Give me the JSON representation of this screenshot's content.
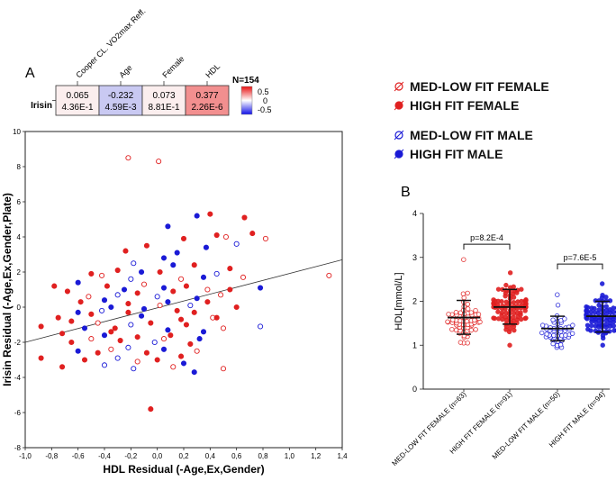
{
  "panel_a": {
    "label": "A",
    "heatmap": {
      "row_label": "Irisin",
      "columns": [
        {
          "name": "Cooper CL. VO2max Reff.",
          "r": "0.065",
          "p": "4.36E-1",
          "color": "#fbeeee"
        },
        {
          "name": "Age",
          "r": "-0.232",
          "p": "4.59E-3",
          "color": "#c9c9f2"
        },
        {
          "name": "Female",
          "r": "0.073",
          "p": "8.81E-1",
          "color": "#fbeeee"
        },
        {
          "name": "HDL",
          "r": "0.377",
          "p": "2.26E-6",
          "color": "#f28f8f"
        }
      ],
      "n_label": "N=154",
      "scale_ticks": [
        "0.5",
        "0",
        "-0.5"
      ]
    }
  },
  "legend": {
    "items": [
      {
        "label": "MED-LOW FIT FEMALE",
        "color": "#e02020",
        "filled": false
      },
      {
        "label": "HIGH FIT FEMALE",
        "color": "#e02020",
        "filled": true
      },
      {
        "label": "MED-LOW FIT MALE",
        "color": "#1a1ad6",
        "filled": false
      },
      {
        "label": "HIGH FIT MALE",
        "color": "#1a1ad6",
        "filled": true
      }
    ]
  },
  "colors": {
    "red": "#e02020",
    "blue": "#1a1ad6",
    "black": "#222222"
  },
  "chart_data": [
    {
      "type": "scatter",
      "title": "",
      "xlabel": "HDL Residual (-Age,Ex,Gender)",
      "ylabel": "Irisin Residual (-Age,Ex,Gender,Plate)",
      "xlim": [
        -1.0,
        1.4
      ],
      "ylim": [
        -8,
        10
      ],
      "x_ticks": [
        "-1,0",
        "-0,8",
        "-0,6",
        "-0,4",
        "-0,2",
        "0,0",
        "0,2",
        "0,4",
        "0,6",
        "0,8",
        "1,0",
        "1,2",
        "1,4"
      ],
      "y_ticks": [
        "10",
        "8",
        "6",
        "4",
        "2",
        "0",
        "-2",
        "-4",
        "-6",
        "-8"
      ],
      "regression": {
        "x1": -1.0,
        "y1": -2.0,
        "x2": 1.4,
        "y2": 2.7
      },
      "points": [
        {
          "x": -0.22,
          "y": 8.5,
          "g": "ff"
        },
        {
          "x": 0.01,
          "y": 8.3,
          "g": "ff"
        },
        {
          "x": 0.4,
          "y": 5.3,
          "g": "hf"
        },
        {
          "x": 0.3,
          "y": 5.2,
          "g": "hm"
        },
        {
          "x": 0.08,
          "y": 4.6,
          "g": "hm"
        },
        {
          "x": 0.66,
          "y": 5.1,
          "g": "hf"
        },
        {
          "x": 0.82,
          "y": 3.9,
          "g": "ff"
        },
        {
          "x": 0.72,
          "y": 4.2,
          "g": "hf"
        },
        {
          "x": 0.52,
          "y": 4.0,
          "g": "ff"
        },
        {
          "x": 0.45,
          "y": 4.1,
          "g": "hf"
        },
        {
          "x": 0.6,
          "y": 3.6,
          "g": "fm"
        },
        {
          "x": 0.2,
          "y": 3.9,
          "g": "hf"
        },
        {
          "x": -0.08,
          "y": 3.5,
          "g": "hf"
        },
        {
          "x": 0.37,
          "y": 3.4,
          "g": "hm"
        },
        {
          "x": -0.24,
          "y": 3.2,
          "g": "hf"
        },
        {
          "x": 0.15,
          "y": 3.1,
          "g": "hm"
        },
        {
          "x": 0.05,
          "y": 2.8,
          "g": "hm"
        },
        {
          "x": 0.28,
          "y": 2.4,
          "g": "hf"
        },
        {
          "x": -0.18,
          "y": 2.5,
          "g": "fm"
        },
        {
          "x": 0.12,
          "y": 2.4,
          "g": "hm"
        },
        {
          "x": -0.3,
          "y": 2.1,
          "g": "hf"
        },
        {
          "x": 0.55,
          "y": 2.2,
          "g": "hf"
        },
        {
          "x": -0.5,
          "y": 1.9,
          "g": "hf"
        },
        {
          "x": -0.12,
          "y": 2.0,
          "g": "hm"
        },
        {
          "x": 0.02,
          "y": 2.0,
          "g": "hf"
        },
        {
          "x": 0.35,
          "y": 1.7,
          "g": "hm"
        },
        {
          "x": -0.42,
          "y": 1.8,
          "g": "ff"
        },
        {
          "x": -0.2,
          "y": 1.6,
          "g": "fm"
        },
        {
          "x": 0.18,
          "y": 1.6,
          "g": "ff"
        },
        {
          "x": 0.65,
          "y": 1.7,
          "g": "ff"
        },
        {
          "x": 0.45,
          "y": 1.9,
          "g": "fm"
        },
        {
          "x": 1.3,
          "y": 1.8,
          "g": "ff"
        },
        {
          "x": -0.78,
          "y": 1.2,
          "g": "hf"
        },
        {
          "x": -0.6,
          "y": 1.4,
          "g": "hm"
        },
        {
          "x": -0.38,
          "y": 1.2,
          "g": "hf"
        },
        {
          "x": -0.25,
          "y": 1.0,
          "g": "hm"
        },
        {
          "x": -0.1,
          "y": 1.3,
          "g": "ff"
        },
        {
          "x": 0.05,
          "y": 1.1,
          "g": "hm"
        },
        {
          "x": 0.22,
          "y": 1.2,
          "g": "hf"
        },
        {
          "x": 0.38,
          "y": 1.0,
          "g": "ff"
        },
        {
          "x": 0.78,
          "y": 1.1,
          "g": "hm"
        },
        {
          "x": 0.55,
          "y": 1.0,
          "g": "hf"
        },
        {
          "x": -0.68,
          "y": 0.9,
          "g": "hf"
        },
        {
          "x": -0.52,
          "y": 0.6,
          "g": "ff"
        },
        {
          "x": -0.3,
          "y": 0.7,
          "g": "fm"
        },
        {
          "x": -0.15,
          "y": 0.8,
          "g": "hf"
        },
        {
          "x": 0.0,
          "y": 0.6,
          "g": "fm"
        },
        {
          "x": 0.12,
          "y": 0.9,
          "g": "hf"
        },
        {
          "x": 0.3,
          "y": 0.5,
          "g": "hm"
        },
        {
          "x": 0.48,
          "y": 0.7,
          "g": "ff"
        },
        {
          "x": -0.88,
          "y": -1.1,
          "g": "hf"
        },
        {
          "x": -0.75,
          "y": -0.6,
          "g": "hf"
        },
        {
          "x": -0.6,
          "y": -0.3,
          "g": "hm"
        },
        {
          "x": -0.5,
          "y": -0.4,
          "g": "hf"
        },
        {
          "x": -0.42,
          "y": -0.2,
          "g": "fm"
        },
        {
          "x": -0.35,
          "y": 0.0,
          "g": "hm"
        },
        {
          "x": -0.22,
          "y": -0.3,
          "g": "hf"
        },
        {
          "x": -0.1,
          "y": -0.1,
          "g": "hm"
        },
        {
          "x": 0.02,
          "y": 0.1,
          "g": "ff"
        },
        {
          "x": 0.15,
          "y": -0.2,
          "g": "hf"
        },
        {
          "x": 0.28,
          "y": -0.3,
          "g": "hf"
        },
        {
          "x": 0.42,
          "y": -0.6,
          "g": "ff"
        },
        {
          "x": 0.6,
          "y": 0.0,
          "g": "hf"
        },
        {
          "x": 0.78,
          "y": -1.1,
          "g": "fm"
        },
        {
          "x": -0.72,
          "y": -1.5,
          "g": "hf"
        },
        {
          "x": -0.55,
          "y": -1.2,
          "g": "hm"
        },
        {
          "x": -0.45,
          "y": -0.9,
          "g": "ff"
        },
        {
          "x": -0.32,
          "y": -1.2,
          "g": "hf"
        },
        {
          "x": -0.2,
          "y": -1.0,
          "g": "fm"
        },
        {
          "x": -0.05,
          "y": -0.9,
          "g": "hf"
        },
        {
          "x": 0.08,
          "y": -1.3,
          "g": "hm"
        },
        {
          "x": 0.22,
          "y": -1.0,
          "g": "hf"
        },
        {
          "x": 0.35,
          "y": -1.4,
          "g": "hm"
        },
        {
          "x": 0.45,
          "y": -0.6,
          "g": "hf"
        },
        {
          "x": -0.65,
          "y": -2.0,
          "g": "hf"
        },
        {
          "x": -0.5,
          "y": -1.8,
          "g": "ff"
        },
        {
          "x": -0.4,
          "y": -1.6,
          "g": "hm"
        },
        {
          "x": -0.28,
          "y": -1.9,
          "g": "hf"
        },
        {
          "x": -0.15,
          "y": -1.7,
          "g": "hf"
        },
        {
          "x": -0.02,
          "y": -2.0,
          "g": "fm"
        },
        {
          "x": 0.1,
          "y": -1.6,
          "g": "hf"
        },
        {
          "x": 0.25,
          "y": -2.1,
          "g": "hf"
        },
        {
          "x": 0.32,
          "y": -1.8,
          "g": "hm"
        },
        {
          "x": -0.6,
          "y": -2.5,
          "g": "hm"
        },
        {
          "x": -0.45,
          "y": -2.6,
          "g": "hf"
        },
        {
          "x": -0.35,
          "y": -2.4,
          "g": "ff"
        },
        {
          "x": -0.22,
          "y": -2.3,
          "g": "fm"
        },
        {
          "x": -0.08,
          "y": -2.6,
          "g": "hf"
        },
        {
          "x": 0.05,
          "y": -2.4,
          "g": "hm"
        },
        {
          "x": 0.18,
          "y": -2.8,
          "g": "hf"
        },
        {
          "x": 0.3,
          "y": -2.5,
          "g": "ff"
        },
        {
          "x": -0.88,
          "y": -2.9,
          "g": "hf"
        },
        {
          "x": -0.55,
          "y": -3.0,
          "g": "hf"
        },
        {
          "x": -0.3,
          "y": -2.9,
          "g": "fm"
        },
        {
          "x": -0.15,
          "y": -3.1,
          "g": "ff"
        },
        {
          "x": 0.0,
          "y": -3.0,
          "g": "hf"
        },
        {
          "x": 0.2,
          "y": -3.2,
          "g": "hm"
        },
        {
          "x": -0.72,
          "y": -3.4,
          "g": "hf"
        },
        {
          "x": -0.4,
          "y": -3.3,
          "g": "fm"
        },
        {
          "x": -0.18,
          "y": -3.5,
          "g": "fm"
        },
        {
          "x": 0.12,
          "y": -3.4,
          "g": "ff"
        },
        {
          "x": 0.28,
          "y": -3.7,
          "g": "hm"
        },
        {
          "x": 0.5,
          "y": -3.5,
          "g": "ff"
        },
        {
          "x": -0.05,
          "y": -5.8,
          "g": "hf"
        },
        {
          "x": -0.58,
          "y": 0.3,
          "g": "hf"
        },
        {
          "x": -0.4,
          "y": 0.4,
          "g": "hm"
        },
        {
          "x": -0.22,
          "y": 0.2,
          "g": "hf"
        },
        {
          "x": 0.08,
          "y": 0.3,
          "g": "hm"
        },
        {
          "x": 0.25,
          "y": 0.1,
          "g": "fm"
        },
        {
          "x": 0.38,
          "y": 0.3,
          "g": "hf"
        },
        {
          "x": -0.65,
          "y": -0.8,
          "g": "hf"
        },
        {
          "x": -0.12,
          "y": -0.5,
          "g": "hm"
        },
        {
          "x": 0.18,
          "y": -0.7,
          "g": "hf"
        },
        {
          "x": 0.5,
          "y": -1.2,
          "g": "ff"
        },
        {
          "x": -0.35,
          "y": -1.4,
          "g": "hf"
        },
        {
          "x": 0.05,
          "y": -1.8,
          "g": "ff"
        }
      ]
    },
    {
      "type": "scatter",
      "title": "",
      "panel_label": "B",
      "ylabel": "HDL[mmol/L]",
      "ylim": [
        0,
        4
      ],
      "y_ticks": [
        "4",
        "3",
        "2",
        "1",
        "0"
      ],
      "categories": [
        "MED-LOW FIT FEMALE (n=63)",
        "HIGH FIT FEMALE (n=91)",
        "MED-LOW FIT MALE (n=50)",
        "HIGH FIT MALE (n=94)"
      ],
      "series": [
        {
          "name": "MED-LOW FIT FEMALE",
          "mean": 1.63,
          "sd_low": 1.25,
          "sd_high": 2.02,
          "min": 1.05,
          "max": 2.95,
          "n": 63,
          "color": "#e02020",
          "filled": false
        },
        {
          "name": "HIGH FIT FEMALE",
          "mean": 1.87,
          "sd_low": 1.48,
          "sd_high": 2.27,
          "min": 1.0,
          "max": 2.65,
          "n": 91,
          "color": "#e02020",
          "filled": true
        },
        {
          "name": "MED-LOW FIT MALE",
          "mean": 1.38,
          "sd_low": 1.1,
          "sd_high": 1.66,
          "min": 0.95,
          "max": 2.15,
          "n": 50,
          "color": "#1a1ad6",
          "filled": false
        },
        {
          "name": "HIGH FIT MALE",
          "mean": 1.66,
          "sd_low": 1.3,
          "sd_high": 2.0,
          "min": 1.0,
          "max": 2.4,
          "n": 94,
          "color": "#1a1ad6",
          "filled": true
        }
      ],
      "significance": [
        {
          "from": 0,
          "to": 1,
          "label": "p=8.2E-4",
          "y": 3.3
        },
        {
          "from": 2,
          "to": 3,
          "label": "p=7.6E-5",
          "y": 2.85
        }
      ]
    }
  ]
}
